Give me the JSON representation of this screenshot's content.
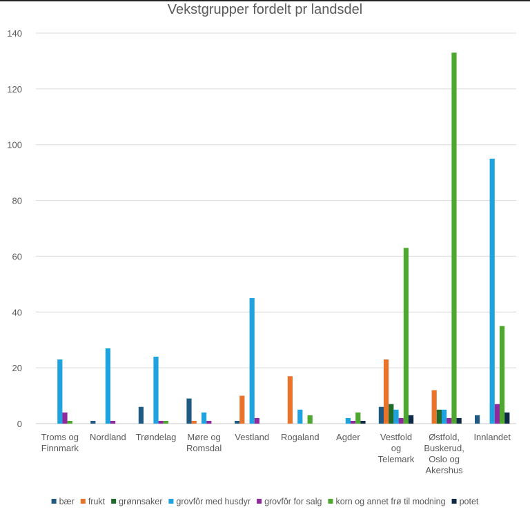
{
  "chart_data": {
    "type": "bar",
    "title": "Vekstgrupper fordelt pr landsdel",
    "xlabel": "",
    "ylabel": "",
    "ylim": [
      0,
      140
    ],
    "yticks": [
      0,
      20,
      40,
      60,
      80,
      100,
      120,
      140
    ],
    "grid": true,
    "legend_position": "bottom",
    "categories": [
      [
        "Troms og",
        "Finnmark"
      ],
      [
        "Nordland"
      ],
      [
        "Trøndelag"
      ],
      [
        "Møre og",
        "Romsdal"
      ],
      [
        "Vestland"
      ],
      [
        "Rogaland"
      ],
      [
        "Agder"
      ],
      [
        "Vestfold",
        "og",
        "Telemark"
      ],
      [
        "Østfold,",
        "Buskerud,",
        "Oslo og",
        "Akershus"
      ],
      [
        "Innlandet"
      ]
    ],
    "series": [
      {
        "name": "bær",
        "color": "#1f5a82",
        "values": [
          0,
          1,
          6,
          9,
          1,
          0,
          0,
          6,
          0,
          3
        ]
      },
      {
        "name": "frukt",
        "color": "#e9732a",
        "values": [
          0,
          0,
          0,
          1,
          10,
          17,
          0,
          23,
          12,
          0
        ]
      },
      {
        "name": "grønnsaker",
        "color": "#1e6b2c",
        "values": [
          0,
          0,
          0,
          0,
          0,
          0,
          0,
          7,
          5,
          0
        ]
      },
      {
        "name": "grovfôr med husdyr",
        "color": "#1fa3e0",
        "values": [
          23,
          27,
          24,
          4,
          45,
          5,
          2,
          5,
          5,
          95
        ]
      },
      {
        "name": "grovfôr for salg",
        "color": "#8e2a9c",
        "values": [
          4,
          1,
          1,
          1,
          2,
          0,
          1,
          2,
          2,
          7
        ]
      },
      {
        "name": "korn og annet frø til modning",
        "color": "#4ea72e",
        "values": [
          1,
          0,
          1,
          0,
          0,
          3,
          4,
          63,
          133,
          35
        ]
      },
      {
        "name": "potet",
        "color": "#0e2a47",
        "values": [
          0,
          0,
          0,
          0,
          0,
          0,
          1,
          3,
          2,
          4
        ]
      }
    ]
  }
}
